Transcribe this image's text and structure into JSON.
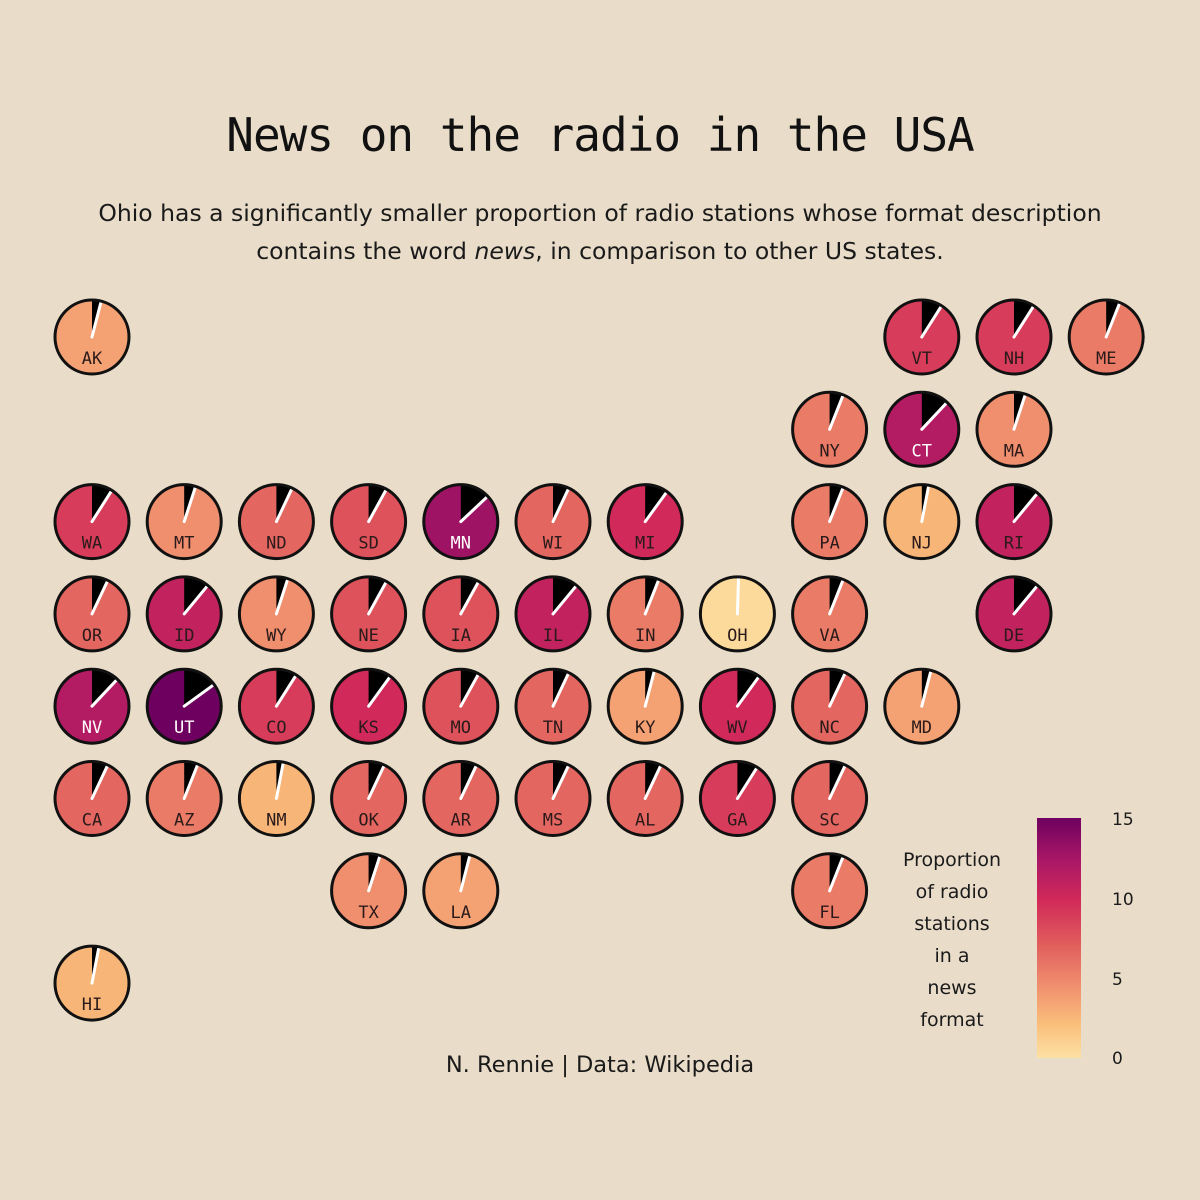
{
  "title": "News on the radio in the USA",
  "subtitle_before": "Ohio has a significantly smaller proportion of radio stations whose format description contains the word ",
  "subtitle_emph": "news",
  "subtitle_after": ", in comparison to other US states.",
  "caption": "N. Rennie | Data: Wikipedia",
  "colors": {
    "background": "#E9DDCA",
    "scale": [
      "#FCE1A4",
      "#FABF7B",
      "#F08F6E",
      "#E05C5C",
      "#D12959",
      "#AB1866",
      "#6E005F"
    ],
    "wedge": "#000000",
    "pointer": "#FFFFFF"
  },
  "legend": {
    "title_lines": [
      "Proportion",
      "of radio",
      "stations",
      "in a",
      "news",
      "format"
    ],
    "ticks": [
      "15",
      "10",
      "5",
      "0"
    ]
  },
  "chart_data": {
    "type": "tile-map",
    "value_range": [
      0,
      15
    ],
    "states": [
      {
        "abbr": "AK",
        "row": 0,
        "col": 0,
        "value": 4
      },
      {
        "abbr": "VT",
        "row": 0,
        "col": 9,
        "value": 9
      },
      {
        "abbr": "NH",
        "row": 0,
        "col": 10,
        "value": 9
      },
      {
        "abbr": "ME",
        "row": 0,
        "col": 11,
        "value": 6
      },
      {
        "abbr": "NY",
        "row": 1,
        "col": 8,
        "value": 6
      },
      {
        "abbr": "CT",
        "row": 1,
        "col": 9,
        "value": 12
      },
      {
        "abbr": "MA",
        "row": 1,
        "col": 10,
        "value": 5
      },
      {
        "abbr": "WA",
        "row": 2,
        "col": 0,
        "value": 9
      },
      {
        "abbr": "MT",
        "row": 2,
        "col": 1,
        "value": 5
      },
      {
        "abbr": "ND",
        "row": 2,
        "col": 2,
        "value": 7
      },
      {
        "abbr": "SD",
        "row": 2,
        "col": 3,
        "value": 8
      },
      {
        "abbr": "MN",
        "row": 2,
        "col": 4,
        "value": 13
      },
      {
        "abbr": "WI",
        "row": 2,
        "col": 5,
        "value": 7
      },
      {
        "abbr": "MI",
        "row": 2,
        "col": 6,
        "value": 10
      },
      {
        "abbr": "PA",
        "row": 2,
        "col": 8,
        "value": 6
      },
      {
        "abbr": "NJ",
        "row": 2,
        "col": 9,
        "value": 3
      },
      {
        "abbr": "RI",
        "row": 2,
        "col": 10,
        "value": 11
      },
      {
        "abbr": "OR",
        "row": 3,
        "col": 0,
        "value": 7
      },
      {
        "abbr": "ID",
        "row": 3,
        "col": 1,
        "value": 11
      },
      {
        "abbr": "WY",
        "row": 3,
        "col": 2,
        "value": 5
      },
      {
        "abbr": "NE",
        "row": 3,
        "col": 3,
        "value": 8
      },
      {
        "abbr": "IA",
        "row": 3,
        "col": 4,
        "value": 8
      },
      {
        "abbr": "IL",
        "row": 3,
        "col": 5,
        "value": 11
      },
      {
        "abbr": "IN",
        "row": 3,
        "col": 6,
        "value": 6
      },
      {
        "abbr": "OH",
        "row": 3,
        "col": 7,
        "value": 0.5
      },
      {
        "abbr": "VA",
        "row": 3,
        "col": 8,
        "value": 6
      },
      {
        "abbr": "DE",
        "row": 3,
        "col": 10,
        "value": 11
      },
      {
        "abbr": "NV",
        "row": 4,
        "col": 0,
        "value": 12
      },
      {
        "abbr": "UT",
        "row": 4,
        "col": 1,
        "value": 15
      },
      {
        "abbr": "CO",
        "row": 4,
        "col": 2,
        "value": 9
      },
      {
        "abbr": "KS",
        "row": 4,
        "col": 3,
        "value": 10
      },
      {
        "abbr": "MO",
        "row": 4,
        "col": 4,
        "value": 8
      },
      {
        "abbr": "TN",
        "row": 4,
        "col": 5,
        "value": 7
      },
      {
        "abbr": "KY",
        "row": 4,
        "col": 6,
        "value": 4
      },
      {
        "abbr": "WV",
        "row": 4,
        "col": 7,
        "value": 10
      },
      {
        "abbr": "NC",
        "row": 4,
        "col": 8,
        "value": 7
      },
      {
        "abbr": "MD",
        "row": 4,
        "col": 9,
        "value": 4
      },
      {
        "abbr": "CA",
        "row": 5,
        "col": 0,
        "value": 7
      },
      {
        "abbr": "AZ",
        "row": 5,
        "col": 1,
        "value": 6
      },
      {
        "abbr": "NM",
        "row": 5,
        "col": 2,
        "value": 3
      },
      {
        "abbr": "OK",
        "row": 5,
        "col": 3,
        "value": 7
      },
      {
        "abbr": "AR",
        "row": 5,
        "col": 4,
        "value": 7
      },
      {
        "abbr": "MS",
        "row": 5,
        "col": 5,
        "value": 7
      },
      {
        "abbr": "AL",
        "row": 5,
        "col": 6,
        "value": 7
      },
      {
        "abbr": "GA",
        "row": 5,
        "col": 7,
        "value": 9
      },
      {
        "abbr": "SC",
        "row": 5,
        "col": 8,
        "value": 7
      },
      {
        "abbr": "TX",
        "row": 6,
        "col": 3,
        "value": 5
      },
      {
        "abbr": "LA",
        "row": 6,
        "col": 4,
        "value": 4
      },
      {
        "abbr": "FL",
        "row": 6,
        "col": 8,
        "value": 6
      },
      {
        "abbr": "HI",
        "row": 7,
        "col": 0,
        "value": 3
      }
    ]
  }
}
